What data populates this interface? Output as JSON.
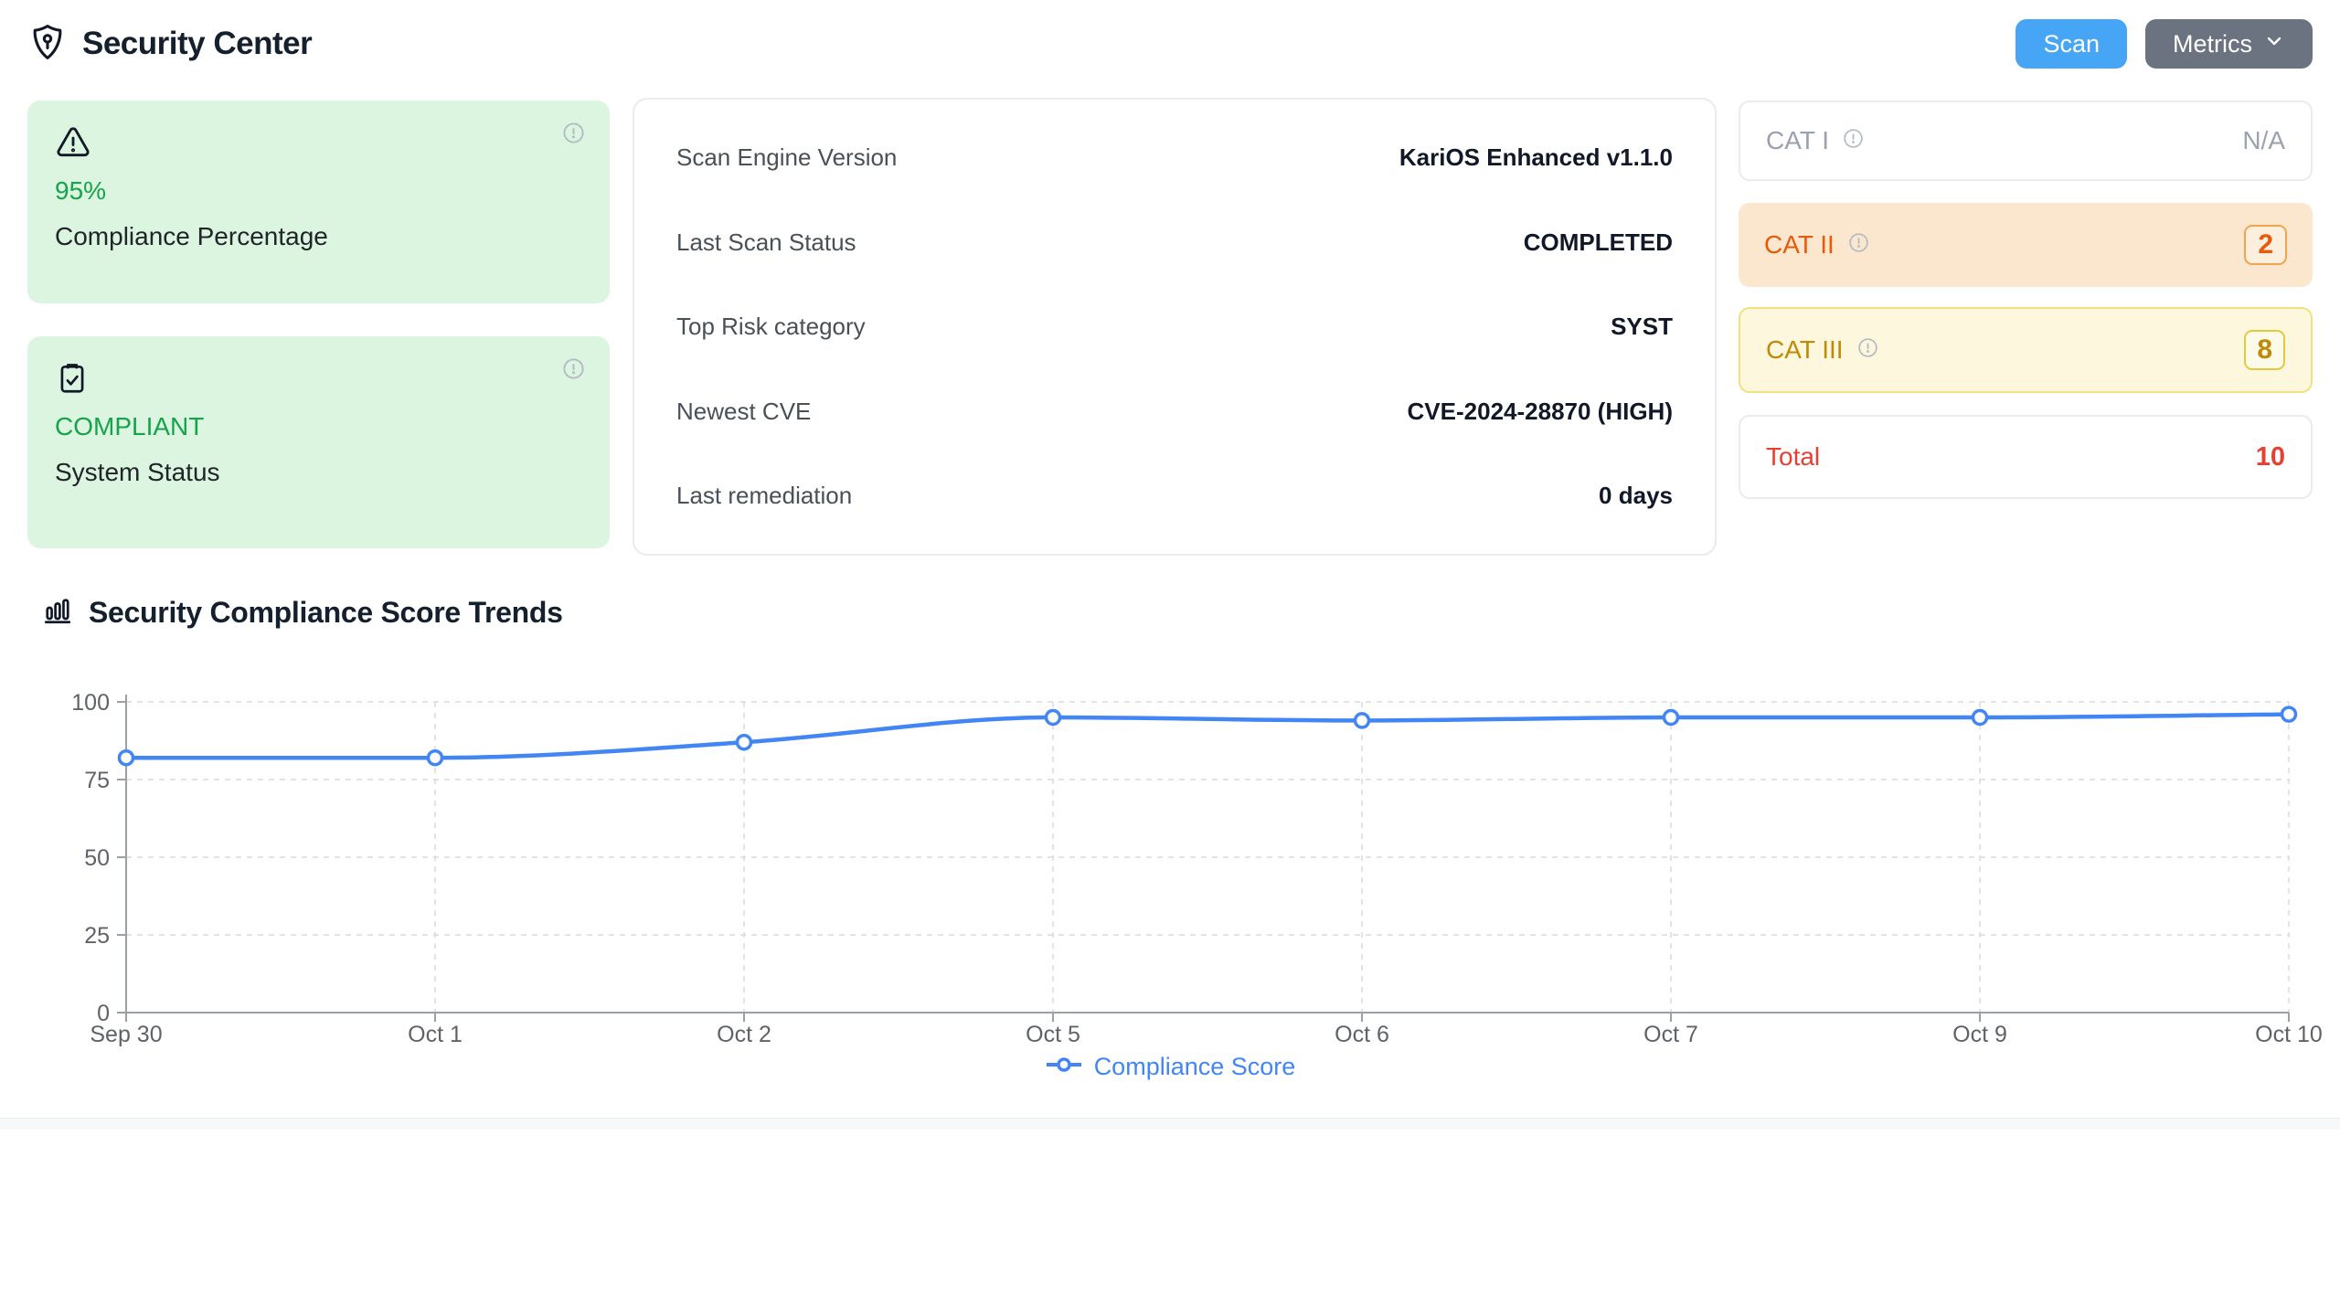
{
  "header": {
    "title": "Security Center",
    "scan_label": "Scan",
    "metrics_label": "Metrics"
  },
  "icons": {
    "header": "shield-keyhole-icon",
    "compliance_card": "warning-triangle-icon",
    "status_card": "clipboard-check-icon",
    "info": "info-badge-icon",
    "trends": "bar-chart-icon",
    "metrics_button": "chevron-down-icon"
  },
  "summary_cards": [
    {
      "value": "95%",
      "label": "Compliance Percentage"
    },
    {
      "value": "COMPLIANT",
      "label": "System Status"
    }
  ],
  "details": {
    "rows": [
      {
        "label": "Scan Engine Version",
        "value": "KariOS Enhanced v1.1.0"
      },
      {
        "label": "Last Scan Status",
        "value": "COMPLETED"
      },
      {
        "label": "Top Risk category",
        "value": "SYST"
      },
      {
        "label": "Newest CVE",
        "value": "CVE-2024-28870 (HIGH)"
      },
      {
        "label": "Last remediation",
        "value": "0 days"
      }
    ]
  },
  "categories": [
    {
      "label": "CAT I",
      "value": "N/A"
    },
    {
      "label": "CAT II",
      "value": "2"
    },
    {
      "label": "CAT III",
      "value": "8"
    },
    {
      "label": "Total",
      "value": "10"
    }
  ],
  "trends": {
    "title": "Security Compliance Score Trends",
    "chart_data": {
      "type": "line",
      "x": [
        "Sep 30",
        "Oct 1",
        "Oct 2",
        "Oct 5",
        "Oct 6",
        "Oct 7",
        "Oct 9",
        "Oct 10"
      ],
      "series": [
        {
          "name": "Compliance Score",
          "values": [
            82,
            82,
            87,
            95,
            94,
            95,
            95,
            96
          ]
        }
      ],
      "ylim": [
        0,
        100
      ],
      "yticks": [
        0,
        25,
        50,
        75,
        100
      ],
      "grid": true,
      "legend_position": "bottom",
      "line_color": "#4285f4"
    }
  },
  "palette": {
    "scan_blue": "#47a5f6",
    "metrics_gray": "#6b7280",
    "success_green": "#17a34a",
    "success_bg": "#dcf5e1",
    "cat2_bg": "#fbe7cd",
    "cat2_text": "#e8590c",
    "cat3_bg": "#fdf7dd",
    "cat3_text": "#c08908",
    "total_red": "#e93e32",
    "line_blue": "#4285f4"
  }
}
